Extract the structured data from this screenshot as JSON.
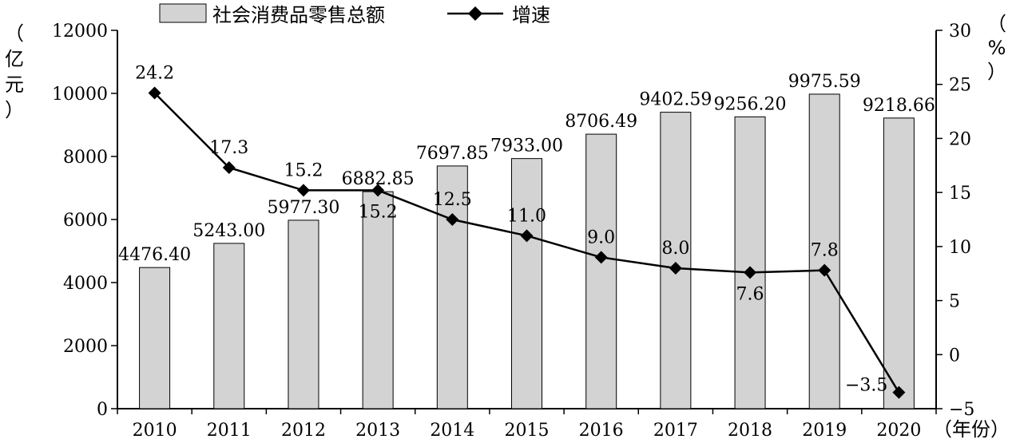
{
  "chart_data": {
    "type": "bar",
    "categories": [
      "2010",
      "2011",
      "2012",
      "2013",
      "2014",
      "2015",
      "2016",
      "2017",
      "2018",
      "2019",
      "2020"
    ],
    "series": [
      {
        "name": "社会消费品零售总额",
        "type": "bar",
        "axis": "left",
        "values": [
          4476.4,
          5243.0,
          5977.3,
          6882.85,
          7697.85,
          7933.0,
          8706.49,
          9402.59,
          9256.2,
          9975.59,
          9218.66
        ],
        "labels": [
          "4476.40",
          "5243.00",
          "5977.30",
          "6882.85",
          "7697.85",
          "7933.00",
          "8706.49",
          "9402.59",
          "9256.20",
          "9975.59",
          "9218.66"
        ],
        "color": "#d3d3d3"
      },
      {
        "name": "增速",
        "type": "line",
        "axis": "right",
        "values": [
          24.2,
          17.3,
          15.2,
          15.2,
          12.5,
          11.0,
          9.0,
          8.0,
          7.6,
          7.8,
          -3.5
        ],
        "labels": [
          "24.2",
          "17.3",
          "15.2",
          "15.2",
          "12.5",
          "11.0",
          "9.0",
          "8.0",
          "7.6",
          "7.8",
          "−3.5"
        ],
        "color": "#000000"
      }
    ],
    "y_left": {
      "label": "（亿元）",
      "range": [
        0,
        12000
      ],
      "ticks": [
        "0",
        "2000",
        "4000",
        "6000",
        "8000",
        "10000",
        "12000"
      ]
    },
    "y_right": {
      "label": "（%）",
      "range": [
        -5,
        30
      ],
      "ticks": [
        "−5",
        "0",
        "5",
        "10",
        "15",
        "20",
        "25",
        "30"
      ]
    },
    "x_axis": {
      "label": "（年份）"
    },
    "legend": {
      "position": "top-left"
    },
    "grid": false
  }
}
